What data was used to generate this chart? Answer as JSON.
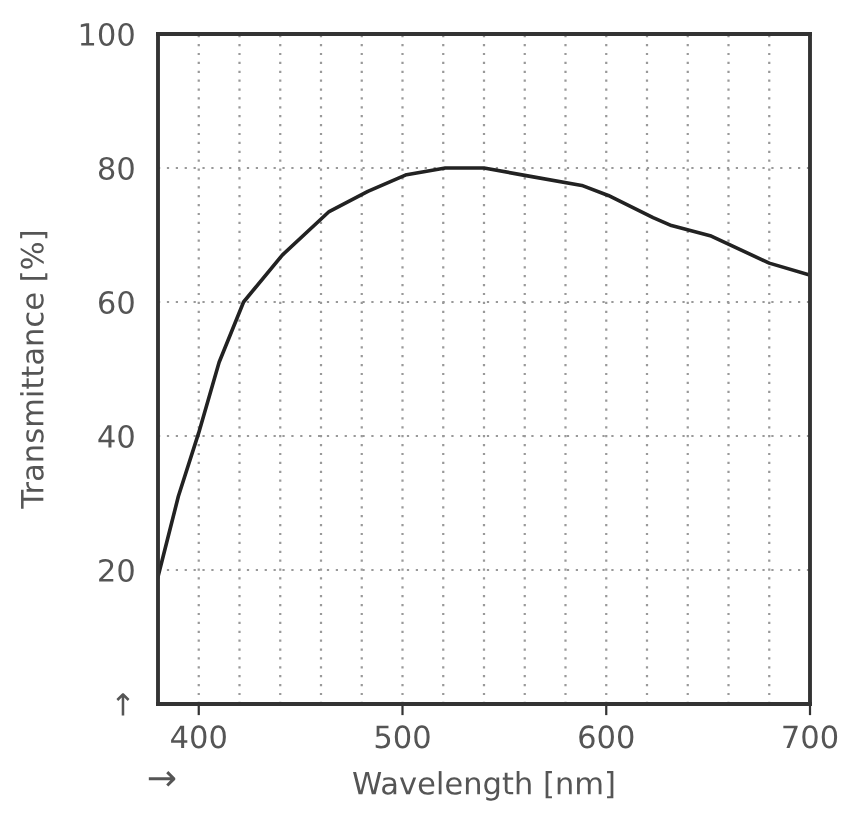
{
  "chart_data": {
    "type": "line",
    "xlabel": "Wavelength [nm]",
    "ylabel": "Transmittance [%]",
    "annotations": [
      "→"
    ],
    "x": [
      380,
      390,
      400,
      410,
      422,
      441,
      464,
      483,
      502,
      521,
      530,
      540,
      560,
      588,
      601,
      623,
      632,
      651,
      680,
      700
    ],
    "series": [
      {
        "color": "#222222",
        "values": [
          19,
          31,
          40.5,
          51,
          60,
          67,
          73.5,
          76.5,
          79,
          80,
          80,
          80,
          78.9,
          77.4,
          75.9,
          72.6,
          71.4,
          69.9,
          65.8,
          64
        ]
      }
    ],
    "xlim": [
      380,
      700
    ],
    "xticks": [
      400,
      {
        "value": 420,
        "label": null
      },
      {
        "value": 440,
        "label": null
      },
      {
        "value": 460,
        "label": null
      },
      {
        "value": 480,
        "label": null
      },
      500,
      {
        "value": 520,
        "label": null
      },
      {
        "value": 540,
        "label": null
      },
      {
        "value": 560,
        "label": null
      },
      {
        "value": 580,
        "label": null
      },
      600,
      {
        "value": 620,
        "label": null
      },
      {
        "value": 640,
        "label": null
      },
      {
        "value": 660,
        "label": null
      },
      {
        "value": 680,
        "label": null
      },
      700
    ],
    "ylim": [
      0,
      100
    ],
    "yticks": [
      {
        "value": 0,
        "label": "↑"
      },
      20,
      40,
      60,
      80,
      100
    ],
    "grid": true,
    "line_style": "solid",
    "marker": "none",
    "legend": false
  }
}
